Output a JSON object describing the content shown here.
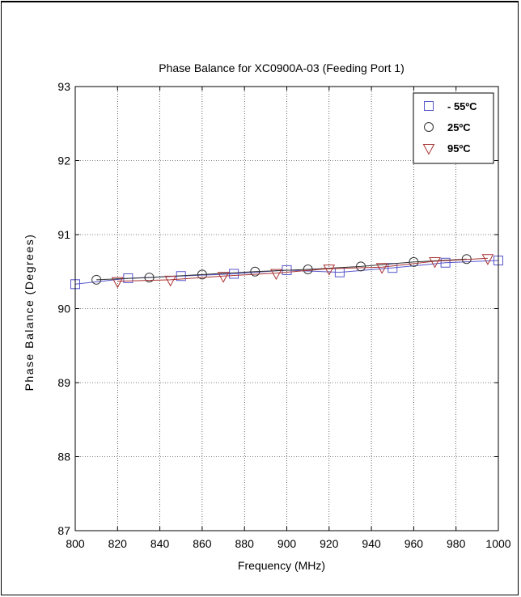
{
  "chart_data": {
    "type": "line",
    "title": "Phase Balance for XC0900A-03 (Feeding Port 1)",
    "xlabel": "Frequency (MHz)",
    "ylabel": "Phase Balance (Degrees)",
    "xlim": [
      800,
      1000
    ],
    "ylim": [
      87,
      93
    ],
    "xticks": [
      "800",
      "820",
      "840",
      "860",
      "880",
      "900",
      "920",
      "940",
      "960",
      "980",
      "1000"
    ],
    "yticks": [
      "87",
      "88",
      "89",
      "90",
      "91",
      "92",
      "93"
    ],
    "grid": true,
    "legend_position": "top-right",
    "series": [
      {
        "name": "- 55ºC",
        "marker": "square",
        "color": "#5555cc",
        "points": [
          [
            800,
            90.33
          ],
          [
            825,
            90.41
          ],
          [
            850,
            90.44
          ],
          [
            875,
            90.47
          ],
          [
            900,
            90.52
          ],
          [
            925,
            90.49
          ],
          [
            950,
            90.55
          ],
          [
            975,
            90.62
          ],
          [
            1000,
            90.65
          ]
        ]
      },
      {
        "name": "25ºC",
        "marker": "circle",
        "color": "#333333",
        "points": [
          [
            810,
            90.39
          ],
          [
            835,
            90.42
          ],
          [
            860,
            90.46
          ],
          [
            885,
            90.5
          ],
          [
            910,
            90.53
          ],
          [
            935,
            90.57
          ],
          [
            960,
            90.63
          ],
          [
            985,
            90.67
          ]
        ]
      },
      {
        "name": "95ºC",
        "marker": "triangle-down",
        "color": "#aa3333",
        "points": [
          [
            820,
            90.37
          ],
          [
            845,
            90.39
          ],
          [
            870,
            90.44
          ],
          [
            895,
            90.48
          ],
          [
            920,
            90.54
          ],
          [
            945,
            90.56
          ],
          [
            970,
            90.64
          ],
          [
            995,
            90.68
          ]
        ]
      }
    ]
  }
}
